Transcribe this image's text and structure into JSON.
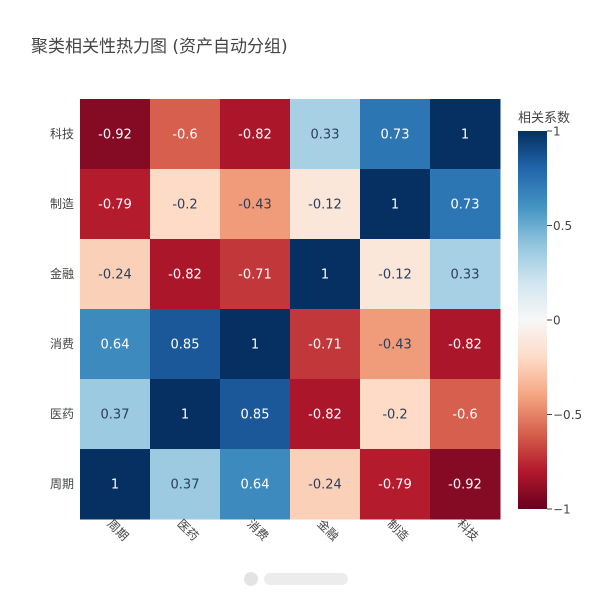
{
  "chart_data": {
    "type": "heatmap",
    "title": "聚类相关性热力图 (资产自动分组)",
    "x_categories": [
      "周期",
      "医药",
      "消费",
      "金融",
      "制造",
      "科技"
    ],
    "y_categories": [
      "科技",
      "制造",
      "金融",
      "消费",
      "医药",
      "周期"
    ],
    "values": [
      [
        -0.92,
        -0.6,
        -0.82,
        0.33,
        0.73,
        1
      ],
      [
        -0.79,
        -0.2,
        -0.43,
        -0.12,
        1,
        0.73
      ],
      [
        -0.24,
        -0.82,
        -0.71,
        1,
        -0.12,
        0.33
      ],
      [
        0.64,
        0.85,
        1,
        -0.71,
        -0.43,
        -0.82
      ],
      [
        0.37,
        1,
        0.85,
        -0.82,
        -0.2,
        -0.6
      ],
      [
        1,
        0.37,
        0.64,
        -0.24,
        -0.79,
        -0.92
      ]
    ],
    "zlim": [
      -1,
      1
    ],
    "colorscale": "RdBu",
    "colorbar": {
      "title": "相关系数",
      "ticks": [
        1,
        0.5,
        0,
        -0.5,
        -1
      ],
      "tick_labels": [
        "1",
        "0.5",
        "0",
        "−0.5",
        "−1"
      ]
    }
  }
}
